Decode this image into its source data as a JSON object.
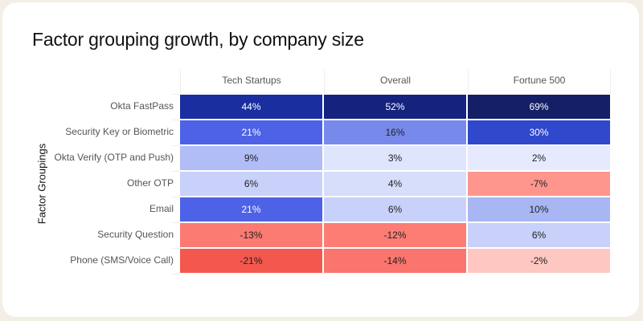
{
  "card": {
    "background": "#ffffff",
    "frame": "#f3efe6"
  },
  "chart_data": {
    "type": "heatmap",
    "title": "Factor grouping growth, by company size",
    "xlabel": "",
    "ylabel": "Factor Groupings",
    "columns": [
      "Tech Startups",
      "Overall",
      "Fortune 500"
    ],
    "rows": [
      "Okta FastPass",
      "Security Key or Biometric",
      "Okta Verify (OTP and Push)",
      "Other OTP",
      "Email",
      "Security Question",
      "Phone (SMS/Voice Call)"
    ],
    "values": [
      [
        44,
        52,
        69
      ],
      [
        21,
        16,
        30
      ],
      [
        9,
        3,
        2
      ],
      [
        6,
        4,
        -7
      ],
      [
        21,
        6,
        10
      ],
      [
        -13,
        -12,
        6
      ],
      [
        -21,
        -14,
        -2
      ]
    ],
    "labels": [
      [
        "44%",
        "52%",
        "69%"
      ],
      [
        "21%",
        "16%",
        "30%"
      ],
      [
        "9%",
        "3%",
        "2%"
      ],
      [
        "6%",
        "4%",
        "-7%"
      ],
      [
        "21%",
        "6%",
        "10%"
      ],
      [
        "-13%",
        "-12%",
        "6%"
      ],
      [
        "-21%",
        "-14%",
        "-2%"
      ]
    ],
    "unit": "%",
    "color_scale": {
      "negative": "#f4554b",
      "neutral": "#f2f4ff",
      "positive": "#15206a"
    }
  }
}
